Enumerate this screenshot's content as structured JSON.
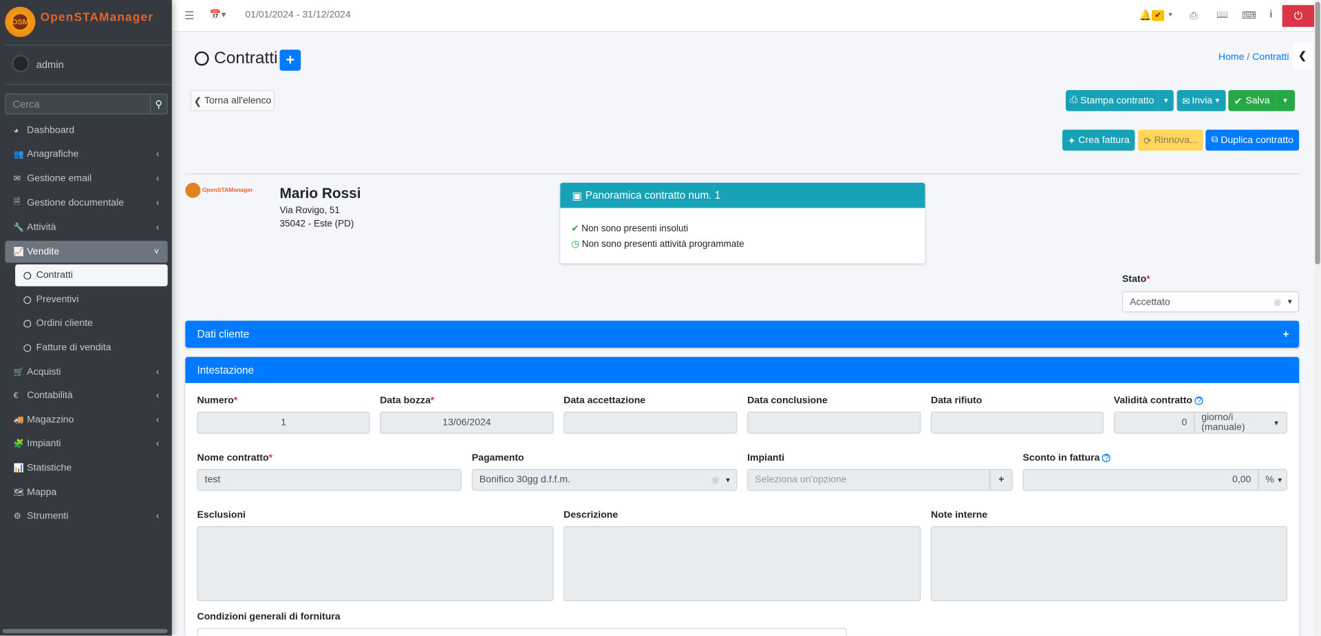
{
  "app": {
    "logo_text": "OpenSTAManager",
    "logo_badge": "OSM"
  },
  "user": {
    "name": "admin"
  },
  "search": {
    "placeholder": "Cerca"
  },
  "sidebar": {
    "items": [
      {
        "label": "Dashboard",
        "icon": "dashboard-icon",
        "glyph": "◕",
        "chevron": false
      },
      {
        "label": "Anagrafiche",
        "icon": "users-icon",
        "glyph": "👥",
        "chevron": true
      },
      {
        "label": "Gestione email",
        "icon": "envelope-icon",
        "glyph": "✉",
        "chevron": true
      },
      {
        "label": "Gestione documentale",
        "icon": "file-icon",
        "glyph": "🗎",
        "chevron": true
      },
      {
        "label": "Attività",
        "icon": "wrench-icon",
        "glyph": "🔧",
        "chevron": true
      },
      {
        "label": "Vendite",
        "icon": "line-chart-icon",
        "glyph": "📈",
        "chevron": true,
        "active": true
      },
      {
        "label": "Contratti",
        "sub": true,
        "selected": true
      },
      {
        "label": "Preventivi",
        "sub": true
      },
      {
        "label": "Ordini cliente",
        "sub": true
      },
      {
        "label": "Fatture di vendita",
        "sub": true
      },
      {
        "label": "Acquisti",
        "icon": "cart-icon",
        "glyph": "🛒",
        "chevron": true
      },
      {
        "label": "Contabilità",
        "icon": "euro-icon",
        "glyph": "€",
        "chevron": true
      },
      {
        "label": "Magazzino",
        "icon": "truck-icon",
        "glyph": "🚚",
        "chevron": true
      },
      {
        "label": "Impianti",
        "icon": "puzzle-icon",
        "glyph": "🧩",
        "chevron": true
      },
      {
        "label": "Statistiche",
        "icon": "bar-chart-icon",
        "glyph": "📊",
        "chevron": false
      },
      {
        "label": "Mappa",
        "icon": "map-icon",
        "glyph": "🗺",
        "chevron": false
      },
      {
        "label": "Strumenti",
        "icon": "cog-icon",
        "glyph": "⚙",
        "chevron": true
      }
    ]
  },
  "topbar": {
    "date_range": "01/01/2024 - 31/12/2024"
  },
  "page": {
    "title": "Contratti",
    "breadcrumb": [
      "Home",
      "Contratti"
    ]
  },
  "toolbar": {
    "back": "Torna all'elenco",
    "print": "Stampa contratto",
    "send": "Invia",
    "save": "Salva",
    "create_invoice": "Crea fattura",
    "renew": "Rinnova...",
    "duplicate": "Duplica contratto"
  },
  "customer": {
    "name": "Mario Rossi",
    "address": "Via Rovigo, 51",
    "city": "35042 - Este (PD)"
  },
  "overview": {
    "title": "Panoramica contratto num. 1",
    "items": [
      "Non sono presenti insoluti",
      "Non sono presenti attività programmate"
    ]
  },
  "stato": {
    "label": "Stato",
    "value": "Accettato"
  },
  "dati_cliente": {
    "title": "Dati cliente"
  },
  "intestazione": {
    "title": "Intestazione",
    "numero": {
      "label": "Numero",
      "value": "1"
    },
    "data_bozza": {
      "label": "Data bozza",
      "value": "13/06/2024"
    },
    "data_accettazione": {
      "label": "Data accettazione",
      "value": ""
    },
    "data_conclusione": {
      "label": "Data conclusione",
      "value": ""
    },
    "data_rifiuto": {
      "label": "Data rifiuto",
      "value": ""
    },
    "validita": {
      "label": "Validità contratto",
      "value": "0",
      "unit": "giorno/i (manuale)"
    },
    "nome": {
      "label": "Nome contratto",
      "value": "test"
    },
    "pagamento": {
      "label": "Pagamento",
      "value": "Bonifico 30gg d.f.f.m."
    },
    "impianti": {
      "label": "Impianti",
      "placeholder": "Seleziona un'opzione"
    },
    "sconto": {
      "label": "Sconto in fattura",
      "value": "0,00",
      "unit": "%"
    },
    "esclusioni": {
      "label": "Esclusioni"
    },
    "descrizione": {
      "label": "Descrizione"
    },
    "note": {
      "label": "Note interne"
    },
    "condizioni": {
      "label": "Condizioni generali di fornitura"
    }
  },
  "colors": {
    "primary": "#007bff",
    "info": "#17a2b8",
    "success": "#28a745",
    "warning": "#ffc107",
    "danger": "#dc3545",
    "sidebar": "#343a40"
  }
}
